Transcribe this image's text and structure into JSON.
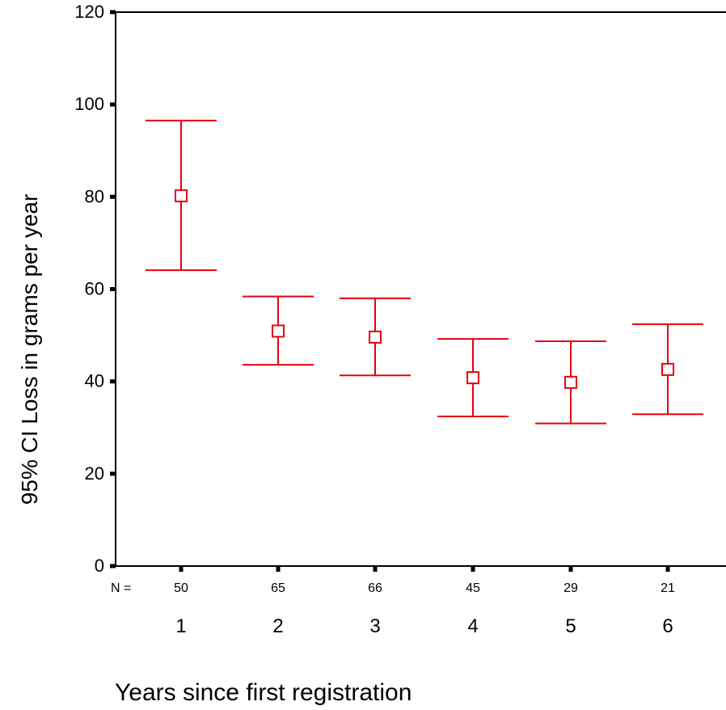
{
  "chart_data": {
    "type": "errorbar",
    "title": "",
    "xlabel": "Years since first registration",
    "ylabel": "95% CI  Loss in grams per year",
    "ylim": [
      0,
      120
    ],
    "yticks": [
      0,
      20,
      40,
      60,
      80,
      100,
      120
    ],
    "categories": [
      "1",
      "2",
      "3",
      "4",
      "5",
      "6"
    ],
    "n_label": "N =",
    "n": [
      "50",
      "65",
      "66",
      "45",
      "29",
      "21"
    ],
    "mean": [
      80.2,
      50.9,
      49.6,
      40.8,
      39.8,
      42.6
    ],
    "lower": [
      64.1,
      43.6,
      41.3,
      32.4,
      30.9,
      32.9
    ],
    "upper": [
      96.5,
      58.4,
      58.0,
      49.2,
      48.7,
      52.4
    ],
    "color": "#e8000d",
    "marker": "square-open",
    "grid": false
  }
}
